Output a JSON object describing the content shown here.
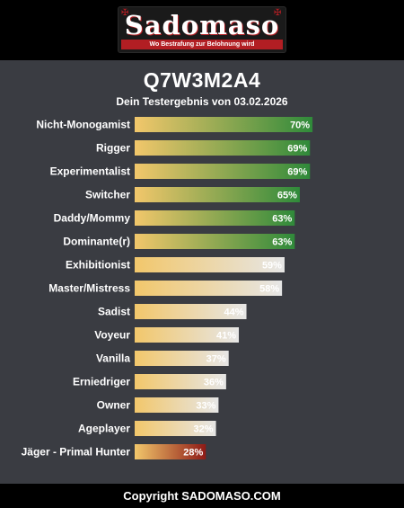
{
  "header": {
    "logo_text": "Sadomaso",
    "logo_tagline": "Wo Bestrafung zur Belohnung wird"
  },
  "result": {
    "code": "Q7W3M2A4",
    "subtitle": "Dein Testergebnis von 03.02.2026"
  },
  "colors": {
    "bar_start": "#f2c76b",
    "high_end": "#2f8a3a",
    "mid_end": "#e6e6e6",
    "low_end": "#8e1a16",
    "header_bg": "#000000",
    "body_bg": "#3a3c42",
    "logo_accent": "#b21e23"
  },
  "chart_data": {
    "type": "bar",
    "orientation": "horizontal",
    "categories": [
      "Nicht-Monogamist",
      "Rigger",
      "Experimentalist",
      "Switcher",
      "Daddy/Mommy",
      "Dominante(r)",
      "Exhibitionist",
      "Master/Mistress",
      "Sadist",
      "Voyeur",
      "Vanilla",
      "Erniedriger",
      "Owner",
      "Ageplayer",
      "Jäger - Primal Hunter"
    ],
    "values": [
      70,
      69,
      69,
      65,
      63,
      63,
      59,
      58,
      44,
      41,
      37,
      36,
      33,
      32,
      28
    ],
    "value_labels": [
      "70%",
      "69%",
      "69%",
      "65%",
      "63%",
      "63%",
      "59%",
      "58%",
      "44%",
      "41%",
      "37%",
      "36%",
      "33%",
      "32%",
      "28%"
    ],
    "tiers": [
      "high",
      "high",
      "high",
      "high",
      "high",
      "high",
      "mid",
      "mid",
      "mid",
      "mid",
      "mid",
      "mid",
      "mid",
      "mid",
      "low"
    ],
    "xlim": [
      0,
      100
    ],
    "grid": false,
    "legend": "none"
  },
  "footer": {
    "copyright": "Copyright SADOMASO.COM"
  }
}
